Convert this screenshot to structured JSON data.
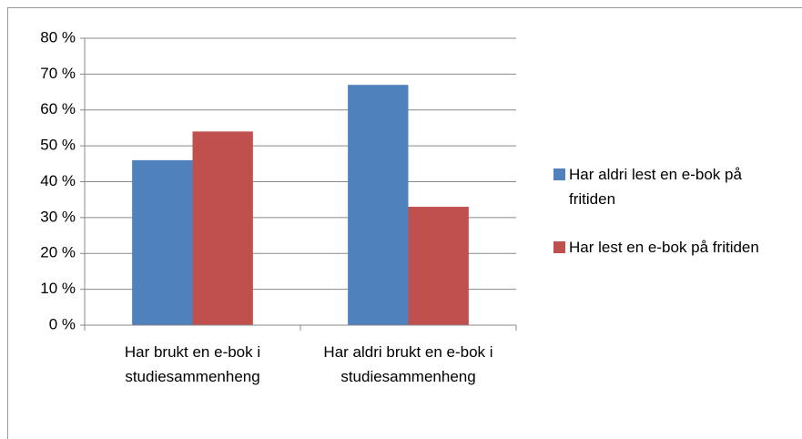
{
  "chart_data": {
    "type": "bar",
    "categories": [
      "Har brukt en e-bok i studiesammenheng",
      "Har aldri brukt en e-bok i studiesammenheng"
    ],
    "series": [
      {
        "name": "Har aldri lest en e-bok på fritiden",
        "color": "#4f81bd",
        "values": [
          46,
          67
        ]
      },
      {
        "name": "Har lest en e-bok på fritiden",
        "color": "#c0504d",
        "values": [
          54,
          33
        ]
      }
    ],
    "ylim": [
      0,
      80
    ],
    "yticks": [
      {
        "value": 0,
        "label": "0 %"
      },
      {
        "value": 10,
        "label": "10 %"
      },
      {
        "value": 20,
        "label": "20 %"
      },
      {
        "value": 30,
        "label": "30 %"
      },
      {
        "value": 40,
        "label": "40 %"
      },
      {
        "value": 50,
        "label": "50 %"
      },
      {
        "value": 60,
        "label": "60 %"
      },
      {
        "value": 70,
        "label": "70 %"
      },
      {
        "value": 80,
        "label": "80 %"
      }
    ],
    "grid": true,
    "legend": "right"
  }
}
